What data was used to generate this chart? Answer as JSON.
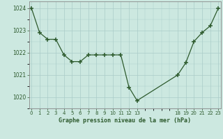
{
  "x_indices": [
    0,
    1,
    2,
    3,
    4,
    5,
    6,
    7,
    8,
    9,
    10,
    11,
    12,
    13,
    18,
    19,
    20,
    21,
    22,
    23
  ],
  "y": [
    1024.0,
    1022.9,
    1022.6,
    1022.6,
    1021.9,
    1021.6,
    1021.6,
    1021.9,
    1021.9,
    1021.9,
    1021.9,
    1021.9,
    1020.45,
    1019.85,
    1021.0,
    1021.55,
    1022.5,
    1022.9,
    1023.2,
    1024.0
  ],
  "xlim": [
    0,
    23
  ],
  "ylim": [
    1019.5,
    1024.3
  ],
  "yticks": [
    1020,
    1021,
    1022,
    1023,
    1024
  ],
  "xtick_positions": [
    0,
    1,
    2,
    3,
    4,
    5,
    6,
    7,
    8,
    9,
    10,
    11,
    12,
    13,
    18,
    19,
    20,
    21,
    22,
    23
  ],
  "xtick_labels": [
    "0",
    "1",
    "2",
    "3",
    "4",
    "5",
    "6",
    "7",
    "8",
    "9",
    "10",
    "11",
    "12",
    "13",
    "18",
    "19",
    "20",
    "21",
    "22",
    "23"
  ],
  "xlabel": "Graphe pression niveau de la mer (hPa)",
  "line_color": "#2d5a2d",
  "marker_color": "#2d5a2d",
  "bg_color": "#cce8e0",
  "grid_color": "#aaccc8",
  "axis_color": "#888888",
  "tick_label_color": "#2d5a2d",
  "xlabel_color": "#2d5a2d"
}
